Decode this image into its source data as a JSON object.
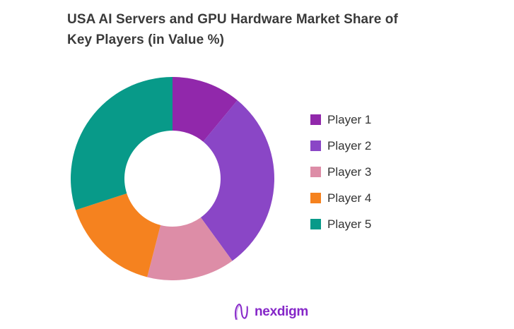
{
  "title": {
    "line1": "USA AI Servers and GPU Hardware Market Share of",
    "line2": "Key Players (in Value %)",
    "color": "#3a3a3a"
  },
  "chart_data": {
    "type": "pie",
    "subtype": "donut",
    "title": "USA AI Servers and GPU Hardware Market Share of Key Players (in Value %)",
    "categories": [
      "Player 1",
      "Player 2",
      "Player 3",
      "Player 4",
      "Player 5"
    ],
    "values": [
      11,
      29,
      14,
      16,
      30
    ],
    "unit": "value %",
    "colors": [
      "#9128ab",
      "#8a46c6",
      "#dd8da7",
      "#f5821f",
      "#089a89"
    ],
    "start_angle_deg": 0,
    "direction": "clockwise",
    "inner_radius_ratio": 0.472,
    "legend_position": "right",
    "data_labels": false,
    "background": "#ffffff"
  },
  "legend": {
    "items": [
      {
        "label": "Player 1",
        "color": "#9128ab"
      },
      {
        "label": "Player 2",
        "color": "#8a46c6"
      },
      {
        "label": "Player 3",
        "color": "#dd8da7"
      },
      {
        "label": "Player 4",
        "color": "#f5821f"
      },
      {
        "label": "Player 5",
        "color": "#089a89"
      }
    ]
  },
  "logo": {
    "icon": "nexdigm-n-wave-icon",
    "text": "nexdigm",
    "color": "#8526c8"
  }
}
